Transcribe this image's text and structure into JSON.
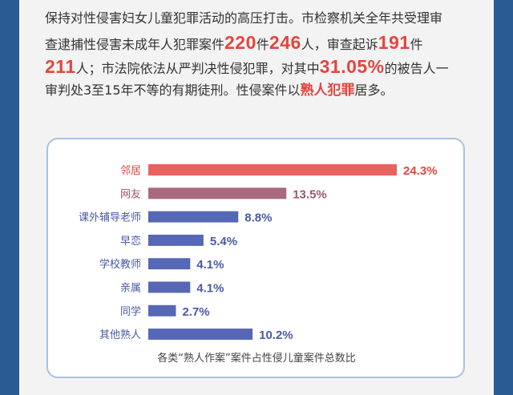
{
  "intro": {
    "l1_a": "保持对性侵害妇女儿童犯罪活动的高压打击。市检察机关全年共受理审",
    "l2_a": "查逮捕性侵害未成年人犯罪案件",
    "l2_n1": "220",
    "l2_b": "件",
    "l2_n2": "246",
    "l2_c": "人，审查起诉",
    "l2_n3": "191",
    "l2_d": "件",
    "l3_n1": "211",
    "l3_a": "人；市法院依法从严判决性侵犯罪，对其中",
    "l3_n2": "31.05%",
    "l3_b": "的被告人一",
    "l4_a": "审判处3至15年不等的有期徒刑。性侵案件以",
    "l4_red": "熟人犯罪",
    "l4_b": "居多。"
  },
  "chart_data": {
    "type": "bar",
    "orientation": "horizontal",
    "title": "各类“熟人作案”案件占性侵儿童案件总数比",
    "categories": [
      "邻居",
      "网友",
      "课外辅导老师",
      "早恋",
      "学校教师",
      "亲属",
      "同学",
      "其他熟人"
    ],
    "values": [
      24.3,
      13.5,
      8.8,
      5.4,
      4.1,
      4.1,
      2.7,
      10.2
    ],
    "value_labels": [
      "24.3%",
      "13.5%",
      "8.8%",
      "5.4%",
      "4.1%",
      "4.1%",
      "2.7%",
      "10.2%"
    ],
    "unit": "%",
    "xlim": [
      0,
      24.3
    ],
    "bar_colors": [
      "#e8625f",
      "#a86a7c",
      "#5667b5",
      "#5667b5",
      "#5667b5",
      "#5667b5",
      "#5667b5",
      "#5667b5"
    ],
    "label_colors": [
      "#e2463f",
      "#a0566b",
      "#4a5aa8",
      "#4a5aa8",
      "#4a5aa8",
      "#4a5aa8",
      "#4a5aa8",
      "#4a5aa8"
    ]
  },
  "colors": {
    "background": "#2b5b93",
    "accent": "#e2463f",
    "panel": "#f3f3f3",
    "card_border": "#a9c2e2"
  }
}
